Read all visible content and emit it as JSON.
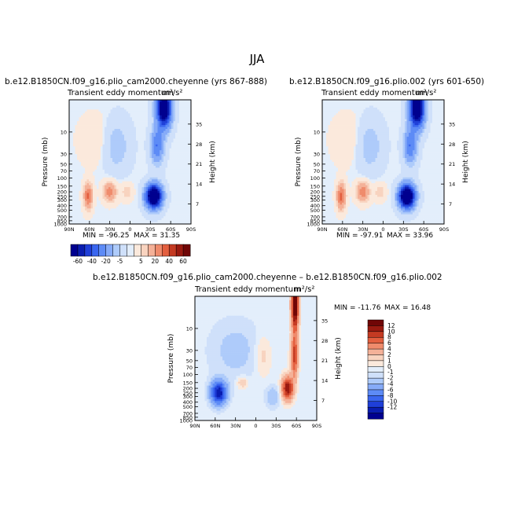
{
  "figure": {
    "title": "JJA"
  },
  "colors": {
    "main_scale": [
      "#00008f",
      "#0a1db0",
      "#1f3fd8",
      "#3a66ef",
      "#5d8bf6",
      "#86abf8",
      "#aecbfa",
      "#cfe0fa",
      "#e3eefb",
      "#fbe9dc",
      "#f8d3bf",
      "#f4b198",
      "#ef8b6c",
      "#e35f3f",
      "#c43a22",
      "#9a1a10",
      "#700606"
    ],
    "diff_scale": [
      "#00008f",
      "#0a1db0",
      "#1f3fd8",
      "#3a66ef",
      "#5d8bf6",
      "#86abf8",
      "#aecbfa",
      "#cfe0fa",
      "#e3eefb",
      "#fbe9dc",
      "#f8d3bf",
      "#f4b198",
      "#ef8b6c",
      "#e35f3f",
      "#c43a22",
      "#9a1a10",
      "#700606"
    ]
  },
  "chart_data": [
    {
      "type": "heatmap",
      "id": "left",
      "title": "b.e12.B1850CN.f09_g16.plio_cam2000.cheyenne (yrs 867-888)",
      "subtitle": "Transient eddy momentum",
      "units": "m²/s²",
      "xlabel": "",
      "ylabel": "Pressure  (mb)",
      "y2label": "Height  (km)",
      "x_ticks": [
        "90N",
        "60N",
        "30N",
        "0",
        "30S",
        "60S",
        "90S"
      ],
      "x_range": [
        90,
        -90
      ],
      "y_ticks": [
        "10",
        "30",
        "50",
        "70",
        "100",
        "150",
        "200",
        "250",
        "300",
        "400",
        "500",
        "700",
        "850",
        "1000"
      ],
      "y2_ticks": [
        "35",
        "28",
        "21",
        "14",
        "7"
      ],
      "min_label": "MIN = -96.25",
      "max_label": "MAX =  31.35",
      "min": -96.25,
      "max": 31.35,
      "features": [
        {
          "lat": -35,
          "p": 250,
          "value": -96.25
        },
        {
          "lat": -50,
          "p": 3,
          "value": -90
        },
        {
          "lat": 30,
          "p": 200,
          "value": 25
        },
        {
          "lat": 62,
          "p": 250,
          "value": 31.35
        }
      ]
    },
    {
      "type": "heatmap",
      "id": "right",
      "title": "b.e12.B1850CN.f09_g16.plio.002 (yrs 601-650)",
      "subtitle": "Transient eddy momentum",
      "units": "m²/s²",
      "xlabel": "",
      "ylabel": "Pressure  (mb)",
      "y2label": "Height  (km)",
      "x_ticks": [
        "90N",
        "60N",
        "30N",
        "0",
        "30S",
        "60S",
        "90S"
      ],
      "x_range": [
        90,
        -90
      ],
      "y_ticks": [
        "10",
        "30",
        "50",
        "70",
        "100",
        "150",
        "200",
        "250",
        "300",
        "400",
        "500",
        "700",
        "850",
        "1000"
      ],
      "y2_ticks": [
        "35",
        "28",
        "21",
        "14",
        "7"
      ],
      "min_label": "MIN = -97.91",
      "max_label": "MAX =  33.96",
      "min": -97.91,
      "max": 33.96,
      "features": [
        {
          "lat": -35,
          "p": 250,
          "value": -97.91
        },
        {
          "lat": -50,
          "p": 3,
          "value": -92
        },
        {
          "lat": 30,
          "p": 200,
          "value": 27
        },
        {
          "lat": 62,
          "p": 250,
          "value": 33.96
        }
      ]
    },
    {
      "type": "heatmap",
      "id": "diff",
      "title": "b.e12.B1850CN.f09_g16.plio_cam2000.cheyenne – b.e12.B1850CN.f09_g16.plio.002",
      "subtitle": "Transient eddy momentum",
      "units": "m²/s²",
      "xlabel": "",
      "ylabel": "Pressure  (mb)",
      "y2label": "Height  (km)",
      "x_ticks": [
        "90N",
        "60N",
        "30N",
        "0",
        "30S",
        "60S",
        "90S"
      ],
      "x_range": [
        90,
        -90
      ],
      "y_ticks": [
        "10",
        "30",
        "50",
        "70",
        "100",
        "150",
        "200",
        "250",
        "300",
        "400",
        "500",
        "700",
        "850",
        "1000"
      ],
      "y2_ticks": [
        "35",
        "28",
        "21",
        "14",
        "7"
      ],
      "min_label": "MIN = -11.76",
      "max_label": "MAX =  16.48",
      "min": -11.76,
      "max": 16.48,
      "features": [
        {
          "lat": 55,
          "p": 250,
          "value": -11.76
        },
        {
          "lat": -47,
          "p": 200,
          "value": 12
        },
        {
          "lat": -58,
          "p": 3,
          "value": 16.48
        },
        {
          "lat": 20,
          "p": 150,
          "value": 2
        }
      ]
    }
  ],
  "colorbars": {
    "main": {
      "labels": [
        "-60",
        "-40",
        "-20",
        "-5",
        "5",
        "20",
        "40",
        "60"
      ],
      "levels": [
        -60,
        -50,
        -40,
        -30,
        -20,
        -10,
        -5,
        5,
        10,
        20,
        30,
        40,
        50,
        60
      ]
    },
    "diff": {
      "labels": [
        "12",
        "10",
        "8",
        "6",
        "4",
        "2",
        "1",
        "0",
        "-1",
        "-2",
        "-4",
        "-6",
        "-8",
        "-10",
        "-12"
      ],
      "levels": [
        12,
        10,
        8,
        6,
        4,
        2,
        1,
        0,
        -1,
        -2,
        -4,
        -6,
        -8,
        -10,
        -12
      ]
    }
  }
}
